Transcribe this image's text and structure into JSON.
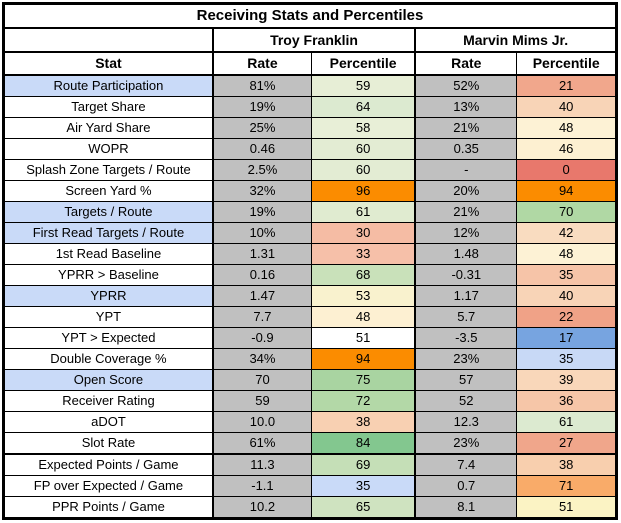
{
  "title": "Receiving Stats and Percentiles",
  "players": [
    "Troy Franklin",
    "Marvin Mims Jr."
  ],
  "columns": {
    "stat": "Stat",
    "rate": "Rate",
    "percentile": "Percentile"
  },
  "colors": {
    "stat_highlight": "#c9daf8",
    "stat_default": "#ffffff",
    "rate_bg": "#c0c0c0",
    "border": "#000000",
    "top_percentile_orange": "#fb8c00"
  },
  "rows": [
    {
      "stat": "Route Participation",
      "highlight": true,
      "group_break": false,
      "f_rate": "81%",
      "f_pct": "59",
      "f_pct_color": "#e7eed6",
      "m_rate": "52%",
      "m_pct": "21",
      "m_pct_color": "#f1a78c"
    },
    {
      "stat": "Target Share",
      "highlight": false,
      "group_break": false,
      "f_rate": "19%",
      "f_pct": "64",
      "f_pct_color": "#dcead0",
      "m_rate": "13%",
      "m_pct": "40",
      "m_pct_color": "#f8d4b7"
    },
    {
      "stat": "Air Yard Share",
      "highlight": false,
      "group_break": false,
      "f_rate": "25%",
      "f_pct": "58",
      "f_pct_color": "#e8efd7",
      "m_rate": "21%",
      "m_pct": "48",
      "m_pct_color": "#fdf2d5"
    },
    {
      "stat": "WOPR",
      "highlight": false,
      "group_break": false,
      "f_rate": "0.46",
      "f_pct": "60",
      "f_pct_color": "#e3ecd3",
      "m_rate": "0.35",
      "m_pct": "46",
      "m_pct_color": "#fdf0d1"
    },
    {
      "stat": "Splash Zone Targets / Route",
      "highlight": false,
      "group_break": false,
      "f_rate": "2.5%",
      "f_pct": "60",
      "f_pct_color": "#e3ecd3",
      "m_rate": "-",
      "m_pct": "0",
      "m_pct_color": "#e8786c"
    },
    {
      "stat": "Screen Yard %",
      "highlight": false,
      "group_break": false,
      "f_rate": "32%",
      "f_pct": "96",
      "f_pct_color": "#fb8c00",
      "m_rate": "20%",
      "m_pct": "94",
      "m_pct_color": "#fb8c00"
    },
    {
      "stat": "Targets / Route",
      "highlight": true,
      "group_break": false,
      "f_rate": "19%",
      "f_pct": "61",
      "f_pct_color": "#e0ebd0",
      "m_rate": "21%",
      "m_pct": "70",
      "m_pct_color": "#b0d8a4"
    },
    {
      "stat": "First Read Targets / Route",
      "highlight": true,
      "group_break": false,
      "f_rate": "10%",
      "f_pct": "30",
      "f_pct_color": "#f5bca4",
      "m_rate": "12%",
      "m_pct": "42",
      "m_pct_color": "#f9dcc0"
    },
    {
      "stat": "1st Read Baseline",
      "highlight": false,
      "group_break": false,
      "f_rate": "1.31",
      "f_pct": "33",
      "f_pct_color": "#f6c0a9",
      "m_rate": "1.48",
      "m_pct": "48",
      "m_pct_color": "#fdf2d5"
    },
    {
      "stat": "YPRR > Baseline",
      "highlight": false,
      "group_break": false,
      "f_rate": "0.16",
      "f_pct": "68",
      "f_pct_color": "#c9e1ba",
      "m_rate": "-0.31",
      "m_pct": "35",
      "m_pct_color": "#f6c4a8"
    },
    {
      "stat": "YPRR",
      "highlight": true,
      "group_break": false,
      "f_rate": "1.47",
      "f_pct": "53",
      "f_pct_color": "#f9f2ce",
      "m_rate": "1.17",
      "m_pct": "40",
      "m_pct_color": "#f8d4b7"
    },
    {
      "stat": "YPT",
      "highlight": false,
      "group_break": false,
      "f_rate": "7.7",
      "f_pct": "48",
      "f_pct_color": "#fdf0d2",
      "m_rate": "5.7",
      "m_pct": "22",
      "m_pct_color": "#f0a287"
    },
    {
      "stat": "YPT > Expected",
      "highlight": false,
      "group_break": false,
      "f_rate": "-0.9",
      "f_pct": "51",
      "f_pct_color": "#ffffff",
      "m_rate": "-3.5",
      "m_pct": "17",
      "m_pct_color": "#77a4e0"
    },
    {
      "stat": "Double Coverage %",
      "highlight": false,
      "group_break": false,
      "f_rate": "34%",
      "f_pct": "94",
      "f_pct_color": "#fb8c00",
      "m_rate": "23%",
      "m_pct": "35",
      "m_pct_color": "#c8d9f6"
    },
    {
      "stat": "Open Score",
      "highlight": true,
      "group_break": false,
      "f_rate": "70",
      "f_pct": "75",
      "f_pct_color": "#a9d4a1",
      "m_rate": "57",
      "m_pct": "39",
      "m_pct_color": "#f9d7ba"
    },
    {
      "stat": "Receiver Rating",
      "highlight": false,
      "group_break": false,
      "f_rate": "59",
      "f_pct": "72",
      "f_pct_color": "#b3d8a7",
      "m_rate": "52",
      "m_pct": "36",
      "m_pct_color": "#f6c6a8"
    },
    {
      "stat": "aDOT",
      "highlight": false,
      "group_break": false,
      "f_rate": "10.0",
      "f_pct": "38",
      "f_pct_color": "#f8d0b2",
      "m_rate": "12.3",
      "m_pct": "61",
      "m_pct_color": "#dcead0"
    },
    {
      "stat": "Slot Rate",
      "highlight": false,
      "group_break": false,
      "f_rate": "61%",
      "f_pct": "84",
      "f_pct_color": "#83c78f",
      "m_rate": "23%",
      "m_pct": "27",
      "m_pct_color": "#f0a68b"
    },
    {
      "stat": "Expected Points / Game",
      "highlight": false,
      "group_break": true,
      "f_rate": "11.3",
      "f_pct": "69",
      "f_pct_color": "#c5dfb7",
      "m_rate": "7.4",
      "m_pct": "38",
      "m_pct_color": "#f8cfae"
    },
    {
      "stat": "FP over Expected / Game",
      "highlight": false,
      "group_break": false,
      "f_rate": "-1.1",
      "f_pct": "35",
      "f_pct_color": "#c9daf8",
      "m_rate": "0.7",
      "m_pct": "71",
      "m_pct_color": "#f9ab69"
    },
    {
      "stat": "PPR Points / Game",
      "highlight": false,
      "group_break": false,
      "f_rate": "10.2",
      "f_pct": "65",
      "f_pct_color": "#cfe3c0",
      "m_rate": "8.1",
      "m_pct": "51",
      "m_pct_color": "#fbf3c4"
    }
  ],
  "chart_data": {
    "type": "table",
    "title": "Receiving Stats and Percentiles",
    "columns": [
      "Stat",
      "Troy Franklin Rate",
      "Troy Franklin Percentile",
      "Marvin Mims Jr. Rate",
      "Marvin Mims Jr. Percentile"
    ],
    "rows": [
      [
        "Route Participation",
        "81%",
        59,
        "52%",
        21
      ],
      [
        "Target Share",
        "19%",
        64,
        "13%",
        40
      ],
      [
        "Air Yard Share",
        "25%",
        58,
        "21%",
        48
      ],
      [
        "WOPR",
        "0.46",
        60,
        "0.35",
        46
      ],
      [
        "Splash Zone Targets / Route",
        "2.5%",
        60,
        "-",
        0
      ],
      [
        "Screen Yard %",
        "32%",
        96,
        "20%",
        94
      ],
      [
        "Targets / Route",
        "19%",
        61,
        "21%",
        70
      ],
      [
        "First Read Targets / Route",
        "10%",
        30,
        "12%",
        42
      ],
      [
        "1st Read Baseline",
        "1.31",
        33,
        "1.48",
        48
      ],
      [
        "YPRR > Baseline",
        "0.16",
        68,
        "-0.31",
        35
      ],
      [
        "YPRR",
        "1.47",
        53,
        "1.17",
        40
      ],
      [
        "YPT",
        "7.7",
        48,
        "5.7",
        22
      ],
      [
        "YPT > Expected",
        "-0.9",
        51,
        "-3.5",
        17
      ],
      [
        "Double Coverage %",
        "34%",
        94,
        "23%",
        35
      ],
      [
        "Open Score",
        "70",
        75,
        "57",
        39
      ],
      [
        "Receiver Rating",
        "59",
        72,
        "52",
        36
      ],
      [
        "aDOT",
        "10.0",
        38,
        "12.3",
        61
      ],
      [
        "Slot Rate",
        "61%",
        84,
        "23%",
        27
      ],
      [
        "Expected Points / Game",
        "11.3",
        69,
        "7.4",
        38
      ],
      [
        "FP over Expected / Game",
        "-1.1",
        35,
        "0.7",
        71
      ],
      [
        "PPR Points / Game",
        "10.2",
        65,
        "8.1",
        51
      ]
    ]
  }
}
